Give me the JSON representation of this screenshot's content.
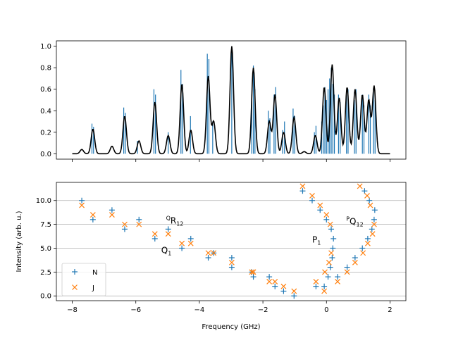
{
  "chart_data": [
    {
      "type": "line",
      "panel": "top",
      "title": "",
      "xlabel": "",
      "ylabel": "",
      "xlim": [
        -8.5,
        2.5
      ],
      "ylim": [
        -0.05,
        1.05
      ],
      "yticks": [
        0.0,
        0.2,
        0.4,
        0.6,
        0.8,
        1.0
      ],
      "ytick_labels": [
        "0.0",
        "0.2",
        "0.4",
        "0.6",
        "0.8",
        "1.0"
      ],
      "xticks": [
        -8,
        -6,
        -4,
        -2,
        0,
        2
      ],
      "grid": false,
      "series": [
        {
          "kind": "stick-spectrum",
          "color": "#1f77b4",
          "sticks": [
            {
              "x": -7.38,
              "y": 0.28
            },
            {
              "x": -7.33,
              "y": 0.25
            },
            {
              "x": -6.38,
              "y": 0.43
            },
            {
              "x": -6.33,
              "y": 0.38
            },
            {
              "x": -5.95,
              "y": 0.12
            },
            {
              "x": -5.43,
              "y": 0.6
            },
            {
              "x": -5.38,
              "y": 0.55
            },
            {
              "x": -4.98,
              "y": 0.2
            },
            {
              "x": -4.58,
              "y": 0.78
            },
            {
              "x": -4.53,
              "y": 0.65
            },
            {
              "x": -4.28,
              "y": 0.35
            },
            {
              "x": -3.75,
              "y": 0.93
            },
            {
              "x": -3.7,
              "y": 0.88
            },
            {
              "x": -3.58,
              "y": 0.3
            },
            {
              "x": -2.98,
              "y": 1.0
            },
            {
              "x": -2.35,
              "y": 0.55
            },
            {
              "x": -2.3,
              "y": 0.82
            },
            {
              "x": -2.25,
              "y": 0.6
            },
            {
              "x": -1.83,
              "y": 0.4
            },
            {
              "x": -1.78,
              "y": 0.33
            },
            {
              "x": -1.65,
              "y": 0.55
            },
            {
              "x": -1.6,
              "y": 0.62
            },
            {
              "x": -1.38,
              "y": 0.22
            },
            {
              "x": -1.32,
              "y": 0.3
            },
            {
              "x": -1.05,
              "y": 0.42
            },
            {
              "x": -1.0,
              "y": 0.35
            },
            {
              "x": -0.38,
              "y": 0.2
            },
            {
              "x": -0.33,
              "y": 0.26
            },
            {
              "x": -0.15,
              "y": 0.3
            },
            {
              "x": -0.1,
              "y": 0.45
            },
            {
              "x": -0.05,
              "y": 0.62
            },
            {
              "x": 0.0,
              "y": 0.5
            },
            {
              "x": 0.05,
              "y": 0.6
            },
            {
              "x": 0.1,
              "y": 0.7
            },
            {
              "x": 0.15,
              "y": 0.8
            },
            {
              "x": 0.2,
              "y": 0.65
            },
            {
              "x": 0.25,
              "y": 0.55
            },
            {
              "x": 0.38,
              "y": 0.55
            },
            {
              "x": 0.43,
              "y": 0.48
            },
            {
              "x": 0.63,
              "y": 0.55
            },
            {
              "x": 0.68,
              "y": 0.6
            },
            {
              "x": 0.88,
              "y": 0.5
            },
            {
              "x": 0.93,
              "y": 0.6
            },
            {
              "x": 1.13,
              "y": 0.55
            },
            {
              "x": 1.18,
              "y": 0.45
            },
            {
              "x": 1.33,
              "y": 0.55
            },
            {
              "x": 1.38,
              "y": 0.45
            },
            {
              "x": 1.48,
              "y": 0.6
            },
            {
              "x": 1.53,
              "y": 0.5
            }
          ]
        },
        {
          "kind": "convolved-envelope",
          "color": "#000000",
          "peaks": [
            {
              "x": -7.7,
              "y": 0.04
            },
            {
              "x": -7.35,
              "y": 0.23
            },
            {
              "x": -6.75,
              "y": 0.07
            },
            {
              "x": -6.35,
              "y": 0.35
            },
            {
              "x": -5.9,
              "y": 0.12
            },
            {
              "x": -5.4,
              "y": 0.48
            },
            {
              "x": -4.98,
              "y": 0.17
            },
            {
              "x": -4.55,
              "y": 0.65
            },
            {
              "x": -4.27,
              "y": 0.22
            },
            {
              "x": -3.72,
              "y": 0.72
            },
            {
              "x": -3.55,
              "y": 0.3
            },
            {
              "x": -2.98,
              "y": 1.0
            },
            {
              "x": -2.3,
              "y": 0.8
            },
            {
              "x": -1.8,
              "y": 0.3
            },
            {
              "x": -1.62,
              "y": 0.55
            },
            {
              "x": -1.35,
              "y": 0.2
            },
            {
              "x": -1.02,
              "y": 0.34
            },
            {
              "x": -0.7,
              "y": 0.02
            },
            {
              "x": -0.35,
              "y": 0.17
            },
            {
              "x": -0.07,
              "y": 0.62
            },
            {
              "x": 0.18,
              "y": 0.83
            },
            {
              "x": 0.4,
              "y": 0.52
            },
            {
              "x": 0.65,
              "y": 0.62
            },
            {
              "x": 0.9,
              "y": 0.6
            },
            {
              "x": 1.13,
              "y": 0.55
            },
            {
              "x": 1.33,
              "y": 0.5
            },
            {
              "x": 1.5,
              "y": 0.63
            }
          ]
        }
      ]
    },
    {
      "type": "scatter",
      "panel": "bottom",
      "title": "",
      "xlabel": "Frequency (GHz)",
      "ylabel": "Intensity (arb. u.)",
      "xlim": [
        -8.5,
        2.5
      ],
      "ylim": [
        -0.5,
        11.9
      ],
      "yticks": [
        0.0,
        2.5,
        5.0,
        7.5,
        10.0
      ],
      "ytick_labels": [
        "0.0",
        "2.5",
        "5.0",
        "7.5",
        "10.0"
      ],
      "xticks": [
        -8,
        -6,
        -4,
        -2,
        0,
        2
      ],
      "xtick_labels": [
        "−8",
        "−6",
        "−4",
        "−2",
        "0",
        "2"
      ],
      "grid": "y",
      "legend_position": "lower-left",
      "series": [
        {
          "name": "N",
          "marker": "+",
          "color": "#1f77b4",
          "points": [
            [
              -7.7,
              10
            ],
            [
              -7.35,
              8
            ],
            [
              -6.75,
              9
            ],
            [
              -6.35,
              7
            ],
            [
              -5.9,
              8
            ],
            [
              -5.4,
              6
            ],
            [
              -4.98,
              7
            ],
            [
              -4.55,
              5
            ],
            [
              -4.27,
              6
            ],
            [
              -3.72,
              4
            ],
            [
              -3.55,
              4.5
            ],
            [
              -2.98,
              3
            ],
            [
              -2.98,
              4
            ],
            [
              -2.35,
              2.5
            ],
            [
              -2.3,
              2
            ],
            [
              -1.8,
              2
            ],
            [
              -1.62,
              1
            ],
            [
              -1.35,
              0.5
            ],
            [
              -1.02,
              0
            ],
            [
              -0.75,
              11
            ],
            [
              -0.45,
              10
            ],
            [
              -0.33,
              1
            ],
            [
              -0.2,
              9
            ],
            [
              -0.07,
              1
            ],
            [
              0.0,
              8
            ],
            [
              0.05,
              2
            ],
            [
              0.12,
              3
            ],
            [
              0.15,
              7
            ],
            [
              0.18,
              4
            ],
            [
              0.2,
              5
            ],
            [
              0.22,
              6
            ],
            [
              0.35,
              2
            ],
            [
              0.65,
              3
            ],
            [
              0.9,
              4
            ],
            [
              1.13,
              5
            ],
            [
              1.2,
              11
            ],
            [
              1.3,
              6
            ],
            [
              1.35,
              10
            ],
            [
              1.43,
              7
            ],
            [
              1.5,
              8
            ],
            [
              1.52,
              9
            ]
          ]
        },
        {
          "name": "J",
          "marker": "x",
          "color": "#ff7f0e",
          "points": [
            [
              -7.7,
              9.5
            ],
            [
              -7.35,
              8.5
            ],
            [
              -6.75,
              8.5
            ],
            [
              -6.35,
              7.5
            ],
            [
              -5.9,
              7.5
            ],
            [
              -5.4,
              6.5
            ],
            [
              -4.98,
              6.5
            ],
            [
              -4.55,
              5.5
            ],
            [
              -4.27,
              5.5
            ],
            [
              -3.72,
              4.5
            ],
            [
              -3.55,
              4.5
            ],
            [
              -2.98,
              3.5
            ],
            [
              -2.35,
              2.5
            ],
            [
              -2.3,
              2.5
            ],
            [
              -1.8,
              1.5
            ],
            [
              -1.62,
              1.5
            ],
            [
              -1.35,
              1
            ],
            [
              -1.02,
              0.5
            ],
            [
              -0.75,
              11.5
            ],
            [
              -0.45,
              10.5
            ],
            [
              -0.33,
              1.5
            ],
            [
              -0.2,
              9.5
            ],
            [
              -0.07,
              0.5
            ],
            [
              -0.05,
              2.5
            ],
            [
              0.0,
              8.5
            ],
            [
              0.08,
              3.5
            ],
            [
              0.12,
              7.5
            ],
            [
              0.15,
              4.5
            ],
            [
              0.35,
              1.5
            ],
            [
              0.65,
              2.5
            ],
            [
              0.9,
              3.5
            ],
            [
              1.05,
              11.5
            ],
            [
              1.15,
              4.5
            ],
            [
              1.28,
              10.5
            ],
            [
              1.3,
              5.5
            ],
            [
              1.38,
              9.5
            ],
            [
              1.45,
              6.5
            ],
            [
              1.5,
              7.5
            ]
          ]
        }
      ],
      "annotations": [
        {
          "x": -5.05,
          "y": 7.6,
          "sup": "Q",
          "main": "R",
          "sub": "12"
        },
        {
          "x": -5.2,
          "y": 4.5,
          "sup": "",
          "main": "Q",
          "sub": "1"
        },
        {
          "x": -0.45,
          "y": 5.6,
          "sup": "",
          "main": "P",
          "sub": "1"
        },
        {
          "x": 0.62,
          "y": 7.5,
          "sup": "P",
          "main": "Q",
          "sub": "12"
        }
      ]
    }
  ]
}
